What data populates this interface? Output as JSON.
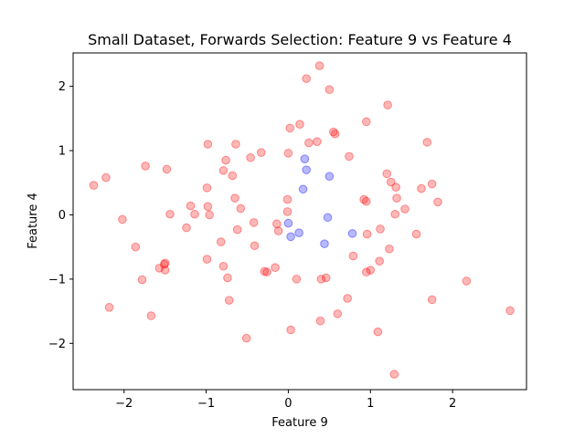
{
  "chart_data": {
    "type": "scatter",
    "title": "Small Dataset, Forwards Selection: Feature 9 vs Feature 4",
    "xlabel": "Feature 9",
    "ylabel": "Feature 4",
    "xlim": [
      -2.62,
      2.9
    ],
    "ylim": [
      -2.72,
      2.52
    ],
    "xticks": [
      -2,
      -1,
      0,
      1,
      2
    ],
    "yticks": [
      -2,
      -1,
      0,
      1,
      2
    ],
    "grid": false,
    "colors": {
      "red": "#ff0000",
      "blue": "#0000ff"
    },
    "series": [
      {
        "color": "red",
        "points": [
          [
            0.38,
            2.32
          ],
          [
            0.22,
            2.12
          ],
          [
            0.5,
            1.95
          ],
          [
            1.21,
            1.71
          ],
          [
            0.95,
            1.45
          ],
          [
            0.14,
            1.41
          ],
          [
            0.02,
            1.35
          ],
          [
            0.55,
            1.29
          ],
          [
            0.57,
            1.26
          ],
          [
            0.35,
            1.14
          ],
          [
            0.25,
            1.12
          ],
          [
            -0.98,
            1.1
          ],
          [
            -0.64,
            1.1
          ],
          [
            1.69,
            1.13
          ],
          [
            -0.33,
            0.97
          ],
          [
            0.0,
            0.96
          ],
          [
            0.74,
            0.91
          ],
          [
            -0.46,
            0.89
          ],
          [
            -0.76,
            0.85
          ],
          [
            -1.74,
            0.76
          ],
          [
            -1.48,
            0.71
          ],
          [
            -0.79,
            0.69
          ],
          [
            -0.68,
            0.61
          ],
          [
            1.2,
            0.64
          ],
          [
            1.25,
            0.51
          ],
          [
            1.75,
            0.48
          ],
          [
            -2.37,
            0.46
          ],
          [
            -2.22,
            0.58
          ],
          [
            -0.99,
            0.42
          ],
          [
            1.62,
            0.41
          ],
          [
            1.31,
            0.43
          ],
          [
            -0.65,
            0.26
          ],
          [
            0.92,
            0.24
          ],
          [
            0.95,
            0.21
          ],
          [
            1.32,
            0.26
          ],
          [
            1.82,
            0.2
          ],
          [
            -0.01,
            0.24
          ],
          [
            -1.19,
            0.14
          ],
          [
            -0.98,
            0.13
          ],
          [
            -0.58,
            0.1
          ],
          [
            -0.01,
            0.05
          ],
          [
            1.42,
            0.09
          ],
          [
            -1.44,
            0.01
          ],
          [
            -1.14,
            0.01
          ],
          [
            -0.96,
            0.0
          ],
          [
            1.3,
            0.01
          ],
          [
            -2.02,
            -0.07
          ],
          [
            -0.42,
            -0.12
          ],
          [
            -0.14,
            -0.14
          ],
          [
            -1.24,
            -0.2
          ],
          [
            -0.12,
            -0.25
          ],
          [
            -0.62,
            -0.23
          ],
          [
            1.12,
            -0.22
          ],
          [
            0.96,
            -0.3
          ],
          [
            1.56,
            -0.3
          ],
          [
            -0.82,
            -0.42
          ],
          [
            -0.41,
            -0.48
          ],
          [
            -1.86,
            -0.5
          ],
          [
            1.23,
            -0.53
          ],
          [
            0.79,
            -0.64
          ],
          [
            -0.99,
            -0.69
          ],
          [
            1.11,
            -0.72
          ],
          [
            -1.5,
            -0.75
          ],
          [
            -1.51,
            -0.77
          ],
          [
            -0.79,
            -0.8
          ],
          [
            -1.57,
            -0.83
          ],
          [
            -1.5,
            -0.86
          ],
          [
            -0.16,
            -0.82
          ],
          [
            -0.29,
            -0.88
          ],
          [
            -0.26,
            -0.89
          ],
          [
            1.0,
            -0.86
          ],
          [
            0.95,
            -0.89
          ],
          [
            -0.74,
            -0.98
          ],
          [
            -1.78,
            -1.01
          ],
          [
            0.1,
            -1.0
          ],
          [
            0.4,
            -1.0
          ],
          [
            0.46,
            -0.98
          ],
          [
            2.17,
            -1.03
          ],
          [
            -0.72,
            -1.33
          ],
          [
            0.72,
            -1.3
          ],
          [
            1.75,
            -1.32
          ],
          [
            -2.18,
            -1.44
          ],
          [
            0.6,
            -1.54
          ],
          [
            2.7,
            -1.49
          ],
          [
            -1.67,
            -1.57
          ],
          [
            0.39,
            -1.65
          ],
          [
            0.03,
            -1.79
          ],
          [
            1.09,
            -1.82
          ],
          [
            -0.51,
            -1.92
          ],
          [
            1.29,
            -2.48
          ]
        ]
      },
      {
        "color": "blue",
        "points": [
          [
            0.2,
            0.87
          ],
          [
            0.22,
            0.7
          ],
          [
            0.5,
            0.6
          ],
          [
            0.18,
            0.4
          ],
          [
            0.48,
            -0.04
          ],
          [
            0.0,
            -0.13
          ],
          [
            0.13,
            -0.28
          ],
          [
            0.78,
            -0.29
          ],
          [
            0.03,
            -0.34
          ],
          [
            0.44,
            -0.45
          ]
        ]
      }
    ]
  }
}
